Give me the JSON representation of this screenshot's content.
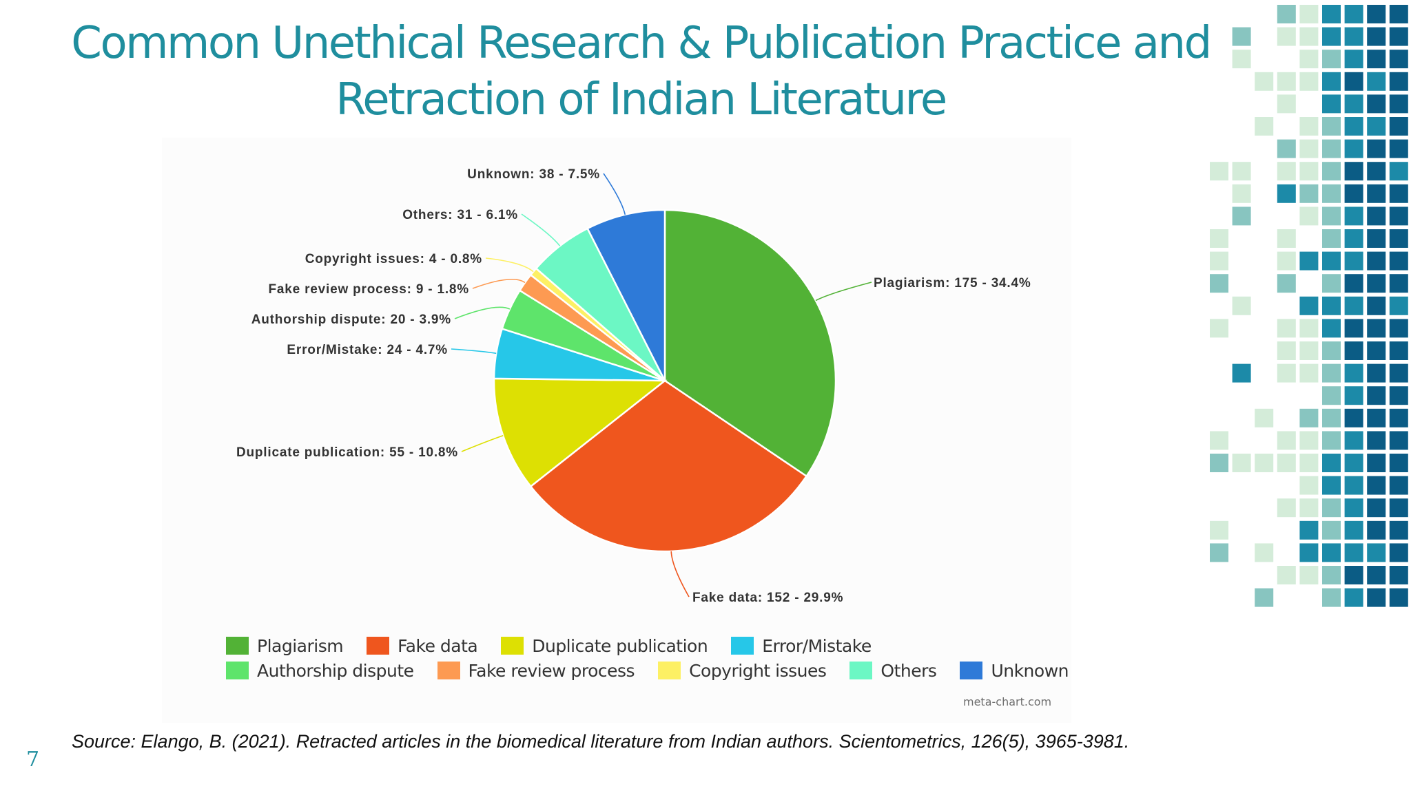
{
  "slide": {
    "title_line1": "Common Unethical Research & Publication Practice and",
    "title_line2": "Retraction of Indian Literature",
    "source": "Source: Elango, B. (2021). Retracted articles in the biomedical literature from Indian authors. Scientometrics, 126(5), 3965-3981.",
    "page_number": "7",
    "watermark": "meta-chart.com"
  },
  "colors": {
    "title": "#1f8e9e",
    "decor": [
      "#d4ecd9",
      "#88c5c0",
      "#1c8aa8",
      "#0b5c85"
    ]
  },
  "chart_data": {
    "type": "pie",
    "slices": [
      {
        "label": "Plagiarism",
        "value": 175,
        "percent": "34.4%",
        "color": "#52b236",
        "text": "Plagiarism: 175 - 34.4%"
      },
      {
        "label": "Fake data",
        "value": 152,
        "percent": "29.9%",
        "color": "#ef561e",
        "text": "Fake data: 152 - 29.9%"
      },
      {
        "label": "Duplicate publication",
        "value": 55,
        "percent": "10.8%",
        "color": "#dde003",
        "text": "Duplicate publication: 55 - 10.8%"
      },
      {
        "label": "Error/Mistake",
        "value": 24,
        "percent": "4.7%",
        "color": "#26c7e8",
        "text": "Error/Mistake: 24 - 4.7%"
      },
      {
        "label": "Authorship dispute",
        "value": 20,
        "percent": "3.9%",
        "color": "#5ee46b",
        "text": "Authorship dispute: 20 - 3.9%"
      },
      {
        "label": "Fake review process",
        "value": 9,
        "percent": "1.8%",
        "color": "#fd9a52",
        "text": "Fake review process: 9 - 1.8%"
      },
      {
        "label": "Copyright issues",
        "value": 4,
        "percent": "0.8%",
        "color": "#fdf064",
        "text": "Copyright issues: 4 - 0.8%"
      },
      {
        "label": "Others",
        "value": 31,
        "percent": "6.1%",
        "color": "#6cf7c4",
        "text": "Others: 31 - 6.1%"
      },
      {
        "label": "Unknown",
        "value": 38,
        "percent": "7.5%",
        "color": "#2e7ad8",
        "text": "Unknown: 38 - 7.5%"
      }
    ],
    "legend_rows": [
      [
        "Plagiarism",
        "Fake data",
        "Duplicate publication",
        "Error/Mistake"
      ],
      [
        "Authorship dispute",
        "Fake review process",
        "Copyright issues",
        "Others",
        "Unknown"
      ]
    ],
    "legend_placement": "bottom"
  }
}
